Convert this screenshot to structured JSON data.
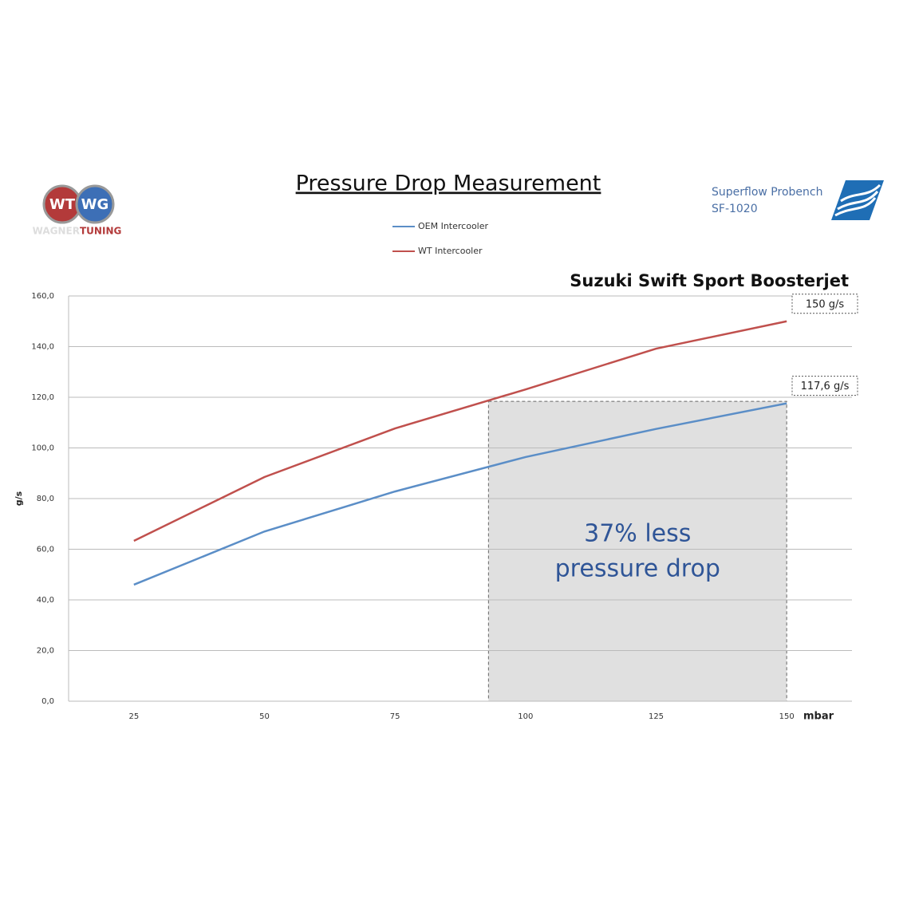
{
  "chart_data": {
    "type": "line",
    "title": "Pressure Drop Measurement",
    "subtitle": "Suzuki Swift Sport Boosterjet",
    "bench": [
      "Superflow Probench",
      "SF-1020"
    ],
    "logo": {
      "left": "WT",
      "right": "WG",
      "wagner": "WAGNER",
      "tuning": "TUNING"
    },
    "y_label": "g/s",
    "x_label": "mbar",
    "x": [
      25,
      50,
      75,
      100,
      125,
      150
    ],
    "xlim": [
      12.5,
      162.5
    ],
    "xticks": [
      25,
      50,
      75,
      100,
      125,
      150
    ],
    "ylim": [
      0,
      160
    ],
    "yticks": [
      {
        "value": 0,
        "label": "0,0"
      },
      {
        "value": 20,
        "label": "20,0"
      },
      {
        "value": 40,
        "label": "40,0"
      },
      {
        "value": 60,
        "label": "60,0"
      },
      {
        "value": 80,
        "label": "80,0"
      },
      {
        "value": 100,
        "label": "100,0"
      },
      {
        "value": 120,
        "label": "120,0"
      },
      {
        "value": 140,
        "label": "140,0"
      },
      {
        "value": 160,
        "label": "160,0"
      }
    ],
    "grid": true,
    "series": [
      {
        "name": "OEM Intercooler",
        "color": "#5b8ec7",
        "values": [
          46,
          67,
          82.8,
          96.4,
          107.5,
          117.6
        ],
        "value_labels": [
          null,
          null,
          null,
          null,
          null,
          "117,6 g/s"
        ]
      },
      {
        "name": "WT Intercooler",
        "color": "#c0504d",
        "values": [
          63.3,
          88.5,
          107.7,
          123.1,
          139.2,
          150
        ],
        "value_labels": [
          null,
          null,
          null,
          null,
          null,
          "150 g/s"
        ]
      }
    ],
    "highlight": {
      "x": [
        92.9,
        150
      ],
      "y": [
        0,
        118.4
      ],
      "text": [
        "37% less",
        "pressure drop"
      ]
    }
  }
}
